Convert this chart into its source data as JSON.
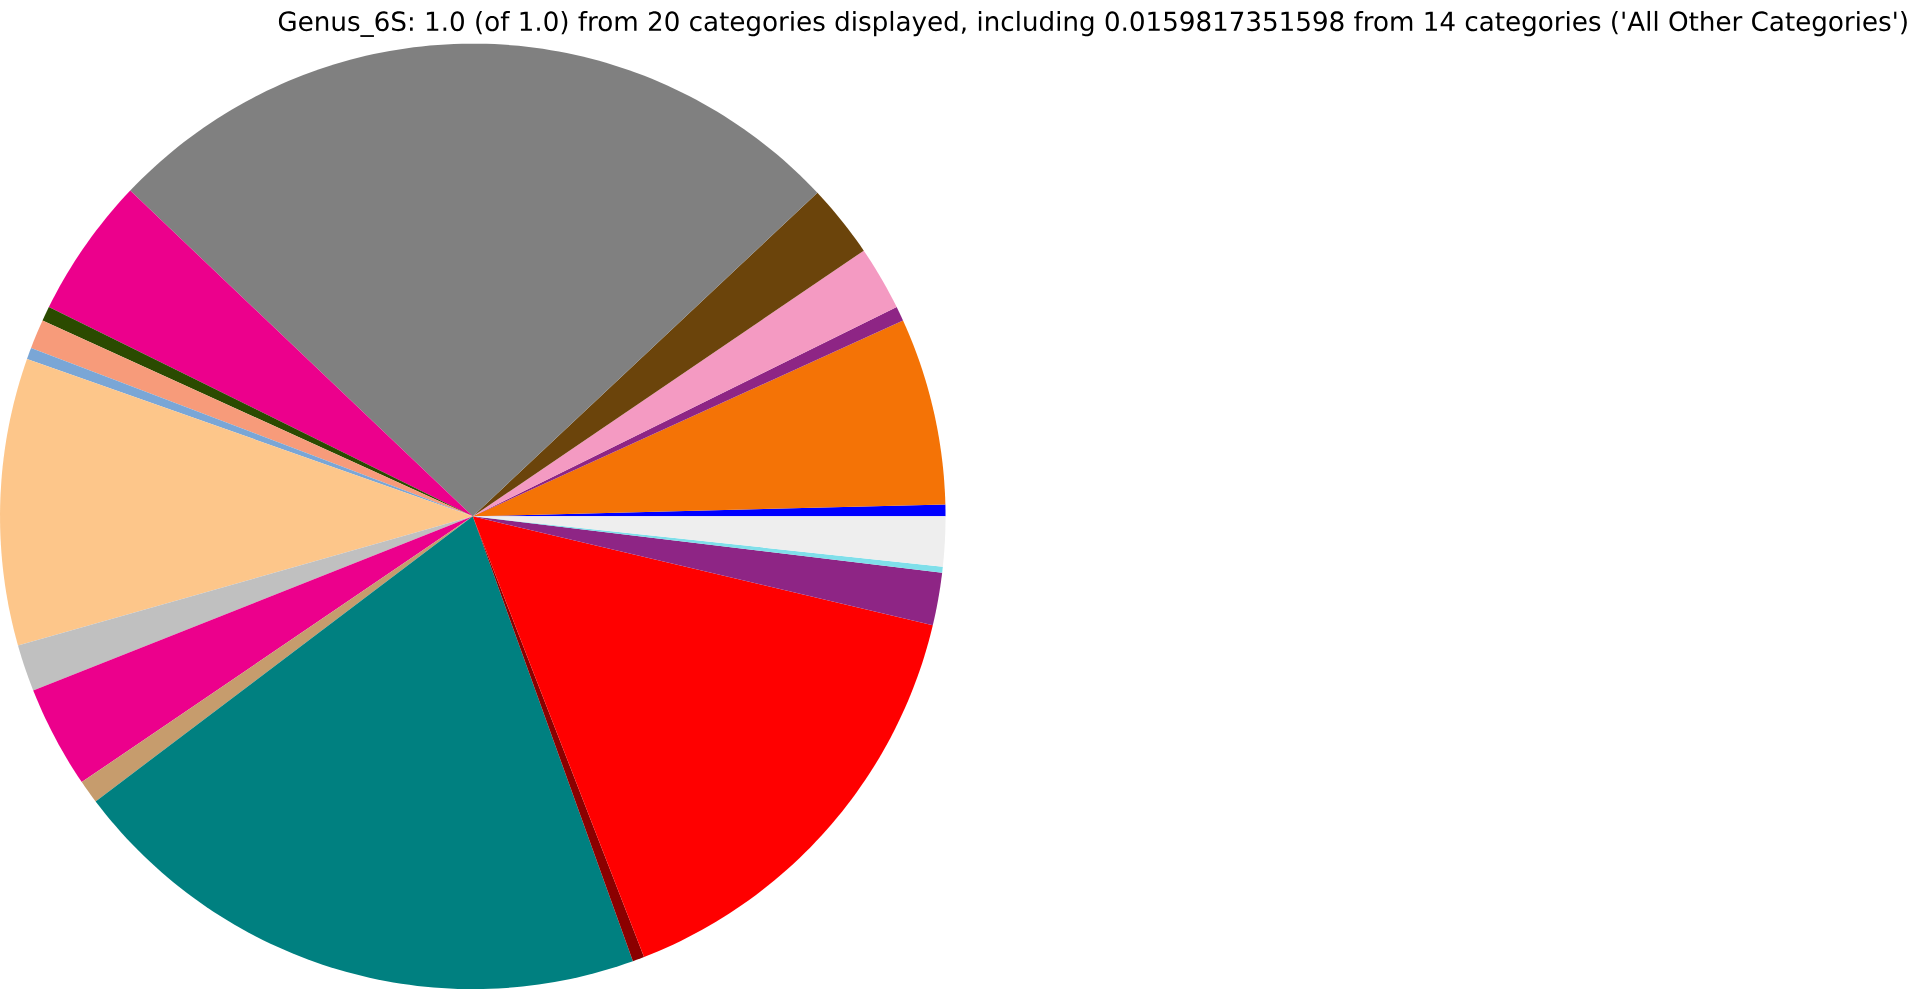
{
  "chart_data": {
    "type": "pie",
    "title": "Genus_6S: 1.0 (of 1.0) from 20 categories displayed, including 0.0159817351598 from 14 categories ('All Other Categories')",
    "categories": [
      null,
      null,
      null,
      null,
      null,
      null,
      null,
      null,
      null,
      null,
      null,
      null,
      null,
      null,
      null,
      null,
      null,
      null,
      null,
      null
    ],
    "values": [
      0.4,
      6.4,
      0.5,
      2.2,
      2.5,
      25.9,
      4.8,
      0.5,
      1.0,
      0.4,
      9.8,
      1.6,
      3.5,
      0.8,
      20.2,
      0.4,
      15.4,
      1.8,
      0.2,
      1.7
    ],
    "colors": [
      "#0000ff",
      "#f47306",
      "#8e2585",
      "#f49ac2",
      "#6b440b",
      "#808080",
      "#ec008c",
      "#2b4a00",
      "#f79b7a",
      "#7aa6d6",
      "#fdc68a",
      "#c0c0c0",
      "#ec008c",
      "#c69c6d",
      "#008080",
      "#8b0000",
      "#ff0000",
      "#8e2585",
      "#7fdfea",
      "#eeeeee"
    ]
  }
}
